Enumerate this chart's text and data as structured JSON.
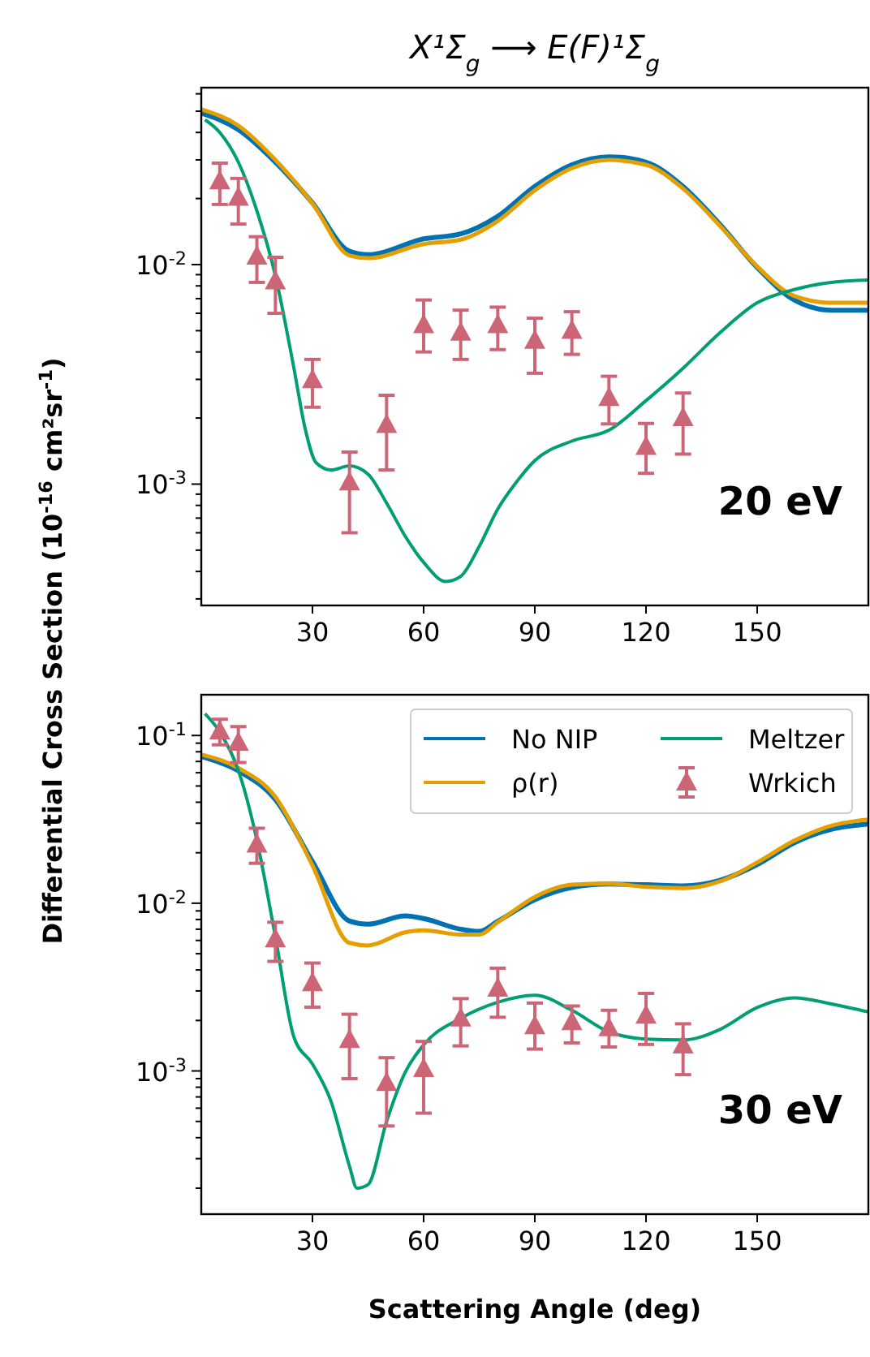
{
  "chart_data": [
    {
      "type": "line",
      "title": "X¹Σ$_{g}$ ⟶ E(F)¹Σ$_{g}$",
      "ylabel": "Differential Cross Section (10$^{-16}$ cm²sr$^{-1}$)",
      "log": "y",
      "xlim": [
        0,
        180
      ],
      "xticks": [
        30,
        60,
        90,
        120,
        150
      ],
      "ylim": [
        0.00028,
        0.064
      ],
      "yticks": [
        {
          "value": 0.0003,
          "label": null
        },
        {
          "value": 0.0004,
          "label": null
        },
        {
          "value": 0.0005,
          "label": null
        },
        {
          "value": 0.0006,
          "label": null
        },
        {
          "value": 0.0007,
          "label": null
        },
        {
          "value": 0.0008,
          "label": null
        },
        {
          "value": 0.0009,
          "label": null
        },
        {
          "value": 0.001,
          "label": "10$^{-3}$"
        },
        {
          "value": 0.002,
          "label": null
        },
        {
          "value": 0.003,
          "label": null
        },
        {
          "value": 0.004,
          "label": null
        },
        {
          "value": 0.005,
          "label": null
        },
        {
          "value": 0.006,
          "label": null
        },
        {
          "value": 0.007,
          "label": null
        },
        {
          "value": 0.008,
          "label": null
        },
        {
          "value": 0.009,
          "label": null
        },
        {
          "value": 0.01,
          "label": "10$^{-2}$"
        },
        {
          "value": 0.02,
          "label": null
        },
        {
          "value": 0.03,
          "label": null
        },
        {
          "value": 0.04,
          "label": null
        },
        {
          "value": 0.05,
          "label": null
        },
        {
          "value": 0.06,
          "label": null
        }
      ],
      "annotations": [
        "20 eV"
      ],
      "series": [
        {
          "color": "#0072b2",
          "x": [
            0,
            10,
            20,
            30,
            40,
            45,
            60,
            70,
            80,
            90,
            100,
            110,
            120,
            130,
            140,
            150,
            160,
            170,
            180
          ],
          "values": [
            0.049,
            0.0412,
            0.0293,
            0.0191,
            0.0115,
            0.0111,
            0.0131,
            0.0138,
            0.0166,
            0.0227,
            0.0285,
            0.031,
            0.0293,
            0.0227,
            0.0152,
            0.0097,
            0.0069,
            0.0062,
            0.0062
          ]
        },
        {
          "color": "#e69f00",
          "x": [
            0,
            10,
            20,
            30,
            40,
            45,
            60,
            70,
            80,
            90,
            100,
            110,
            120,
            130,
            140,
            150,
            160,
            170,
            180
          ],
          "values": [
            0.051,
            0.043,
            0.03,
            0.019,
            0.011,
            0.0107,
            0.0124,
            0.013,
            0.0158,
            0.0218,
            0.0275,
            0.03,
            0.0285,
            0.0222,
            0.015,
            0.0098,
            0.0072,
            0.0067,
            0.0067
          ]
        },
        {
          "color": "#009e73",
          "x": [
            1,
            5,
            10,
            15,
            20,
            25,
            28,
            31,
            35,
            40,
            45,
            50,
            55,
            60,
            66,
            70,
            75,
            80,
            85,
            90,
            100,
            110,
            120,
            130,
            140,
            150,
            160,
            170,
            180
          ],
          "values": [
            0.0457,
            0.04,
            0.0293,
            0.0176,
            0.0089,
            0.00337,
            0.0018,
            0.00125,
            0.00116,
            0.00121,
            0.00111,
            0.00082,
            0.00058,
            0.00044,
            0.00036,
            0.00038,
            0.00052,
            0.00077,
            0.00102,
            0.00128,
            0.00157,
            0.00176,
            0.0024,
            0.00337,
            0.0049,
            0.0067,
            0.0077,
            0.0083,
            0.0085
          ]
        },
        {
          "type": "scatter",
          "color": "#cc6677",
          "marker": "triangle",
          "x": [
            5,
            10,
            15,
            20,
            30,
            40,
            50,
            60,
            70,
            80,
            90,
            100,
            110,
            120,
            130
          ],
          "values": [
            0.024,
            0.0202,
            0.0109,
            0.0084,
            0.00298,
            0.00102,
            0.00186,
            0.0053,
            0.0049,
            0.0053,
            0.0045,
            0.005,
            0.00247,
            0.00148,
            0.002
          ],
          "errors": [
            [
              0.0188,
              0.029
            ],
            [
              0.0153,
              0.0247
            ],
            [
              0.0083,
              0.0134
            ],
            [
              0.006,
              0.0108
            ],
            [
              0.00224,
              0.0037
            ],
            [
              0.0006,
              0.0014
            ],
            [
              0.00116,
              0.00254
            ],
            [
              0.004,
              0.0069
            ],
            [
              0.0037,
              0.0062
            ],
            [
              0.0041,
              0.0064
            ],
            [
              0.0032,
              0.0057
            ],
            [
              0.0039,
              0.0061
            ],
            [
              0.00188,
              0.0031
            ],
            [
              0.00112,
              0.00189
            ],
            [
              0.00137,
              0.0026
            ]
          ]
        }
      ]
    },
    {
      "type": "line",
      "xlabel": "Scattering Angle (deg)",
      "log": "y",
      "legend": "top right",
      "xlim": [
        0,
        180
      ],
      "xticks": [
        30,
        60,
        90,
        120,
        150
      ],
      "ylim": [
        0.00014,
        0.175
      ],
      "yticks": [
        {
          "value": 0.0002,
          "label": null
        },
        {
          "value": 0.0003,
          "label": null
        },
        {
          "value": 0.0004,
          "label": null
        },
        {
          "value": 0.0005,
          "label": null
        },
        {
          "value": 0.0006,
          "label": null
        },
        {
          "value": 0.0007,
          "label": null
        },
        {
          "value": 0.0008,
          "label": null
        },
        {
          "value": 0.0009,
          "label": null
        },
        {
          "value": 0.001,
          "label": "10$^{-3}$"
        },
        {
          "value": 0.002,
          "label": null
        },
        {
          "value": 0.003,
          "label": null
        },
        {
          "value": 0.004,
          "label": null
        },
        {
          "value": 0.005,
          "label": null
        },
        {
          "value": 0.006,
          "label": null
        },
        {
          "value": 0.007,
          "label": null
        },
        {
          "value": 0.008,
          "label": null
        },
        {
          "value": 0.009,
          "label": null
        },
        {
          "value": 0.01,
          "label": "10$^{-2}$"
        },
        {
          "value": 0.02,
          "label": null
        },
        {
          "value": 0.03,
          "label": null
        },
        {
          "value": 0.04,
          "label": null
        },
        {
          "value": 0.05,
          "label": null
        },
        {
          "value": 0.06,
          "label": null
        },
        {
          "value": 0.07,
          "label": null
        },
        {
          "value": 0.08,
          "label": null
        },
        {
          "value": 0.09,
          "label": null
        },
        {
          "value": 0.1,
          "label": "10$^{-1}$"
        }
      ],
      "annotations": [
        "30 eV"
      ],
      "series": [
        {
          "name": "No NIP",
          "color": "#0072b2",
          "x": [
            0,
            10,
            20,
            30,
            40,
            45,
            55,
            60,
            70,
            75,
            80,
            90,
            100,
            110,
            120,
            130,
            140,
            150,
            160,
            170,
            180
          ],
          "values": [
            0.075,
            0.0616,
            0.0415,
            0.0177,
            0.00783,
            0.0075,
            0.0084,
            0.0081,
            0.007,
            0.0068,
            0.0078,
            0.0105,
            0.0124,
            0.013,
            0.0129,
            0.0127,
            0.0137,
            0.017,
            0.0229,
            0.0276,
            0.0297
          ]
        },
        {
          "name": "ρ(r)",
          "color": "#e69f00",
          "x": [
            0,
            10,
            20,
            30,
            40,
            45,
            55,
            60,
            70,
            75,
            80,
            90,
            100,
            110,
            120,
            130,
            140,
            150,
            160,
            170,
            180
          ],
          "values": [
            0.077,
            0.064,
            0.043,
            0.0168,
            0.0058,
            0.0056,
            0.0067,
            0.0069,
            0.0065,
            0.0065,
            0.0077,
            0.0109,
            0.0129,
            0.0131,
            0.0125,
            0.0123,
            0.0135,
            0.0175,
            0.0236,
            0.029,
            0.0316
          ]
        },
        {
          "name": "Meltzer",
          "color": "#009e73",
          "x": [
            1,
            5,
            10,
            15,
            20,
            25,
            30,
            35,
            40,
            42,
            45,
            50,
            55,
            60,
            70,
            80,
            90,
            100,
            110,
            120,
            130,
            140,
            150,
            160,
            170,
            180
          ],
          "values": [
            0.135,
            0.105,
            0.062,
            0.0238,
            0.0063,
            0.00159,
            0.0011,
            0.00066,
            0.00027,
            0.0002,
            0.00021,
            0.0005,
            0.00098,
            0.00143,
            0.00206,
            0.00257,
            0.00283,
            0.0023,
            0.00171,
            0.00155,
            0.00153,
            0.00177,
            0.00239,
            0.00273,
            0.00251,
            0.00225
          ]
        },
        {
          "type": "scatter",
          "name": "Wrkich",
          "color": "#cc6677",
          "marker": "triangle",
          "x": [
            5,
            10,
            15,
            20,
            30,
            40,
            50,
            60,
            70,
            80,
            90,
            100,
            110,
            120,
            130
          ],
          "values": [
            0.106,
            0.0907,
            0.0224,
            0.0061,
            0.00334,
            0.00153,
            0.00085,
            0.00103,
            0.00206,
            0.0031,
            0.00185,
            0.00196,
            0.0018,
            0.00214,
            0.00142
          ],
          "errors": [
            [
              0.088,
              0.125
            ],
            [
              0.069,
              0.113
            ],
            [
              0.0173,
              0.028
            ],
            [
              0.0045,
              0.0077
            ],
            [
              0.0024,
              0.0044
            ],
            [
              0.0009,
              0.00218
            ],
            [
              0.00047,
              0.0012
            ],
            [
              0.00056,
              0.0015
            ],
            [
              0.00141,
              0.0027
            ],
            [
              0.00209,
              0.0041
            ],
            [
              0.00135,
              0.00254
            ],
            [
              0.00147,
              0.00244
            ],
            [
              0.00139,
              0.0023
            ],
            [
              0.00144,
              0.0029
            ],
            [
              0.00095,
              0.00191
            ]
          ]
        }
      ]
    }
  ]
}
